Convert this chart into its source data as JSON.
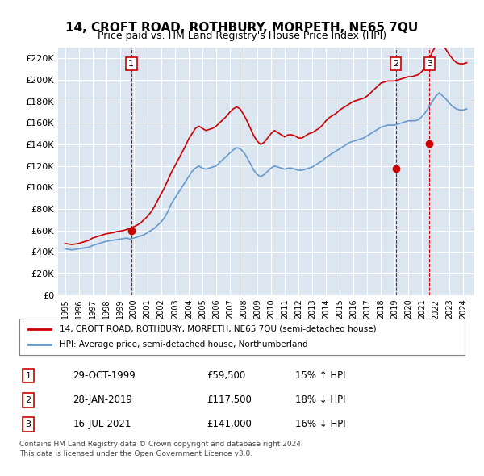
{
  "title": "14, CROFT ROAD, ROTHBURY, MORPETH, NE65 7QU",
  "subtitle": "Price paid vs. HM Land Registry's House Price Index (HPI)",
  "legend_line1": "14, CROFT ROAD, ROTHBURY, MORPETH, NE65 7QU (semi-detached house)",
  "legend_line2": "HPI: Average price, semi-detached house, Northumberland",
  "footnote1": "Contains HM Land Registry data © Crown copyright and database right 2024.",
  "footnote2": "This data is licensed under the Open Government Licence v3.0.",
  "price_color": "#cc0000",
  "hpi_color": "#6699cc",
  "background_color": "#dce6f1",
  "plot_bg_color": "#dce6f1",
  "sale_marker_color": "#cc0000",
  "annotation_box_color": "#cc0000",
  "sales": [
    {
      "label": "1",
      "date_x": 1999.83,
      "price": 59500
    },
    {
      "label": "2",
      "date_x": 2019.08,
      "price": 117500
    },
    {
      "label": "3",
      "date_x": 2021.54,
      "price": 141000
    }
  ],
  "sale_annotations": [
    {
      "num": "1",
      "date": "29-OCT-1999",
      "price": "£59,500",
      "pct": "15% ↑ HPI"
    },
    {
      "num": "2",
      "date": "28-JAN-2019",
      "price": "£117,500",
      "pct": "18% ↓ HPI"
    },
    {
      "num": "3",
      "date": "16-JUL-2021",
      "price": "£141,000",
      "pct": "16% ↓ HPI"
    }
  ],
  "ylim": [
    0,
    230000
  ],
  "yticks": [
    0,
    20000,
    40000,
    60000,
    80000,
    100000,
    120000,
    140000,
    160000,
    180000,
    200000,
    220000
  ],
  "xlim_start": 1994.5,
  "xlim_end": 2024.8,
  "hpi_data": {
    "years": [
      1995.0,
      1995.25,
      1995.5,
      1995.75,
      1996.0,
      1996.25,
      1996.5,
      1996.75,
      1997.0,
      1997.25,
      1997.5,
      1997.75,
      1998.0,
      1998.25,
      1998.5,
      1998.75,
      1999.0,
      1999.25,
      1999.5,
      1999.75,
      2000.0,
      2000.25,
      2000.5,
      2000.75,
      2001.0,
      2001.25,
      2001.5,
      2001.75,
      2002.0,
      2002.25,
      2002.5,
      2002.75,
      2003.0,
      2003.25,
      2003.5,
      2003.75,
      2004.0,
      2004.25,
      2004.5,
      2004.75,
      2005.0,
      2005.25,
      2005.5,
      2005.75,
      2006.0,
      2006.25,
      2006.5,
      2006.75,
      2007.0,
      2007.25,
      2007.5,
      2007.75,
      2008.0,
      2008.25,
      2008.5,
      2008.75,
      2009.0,
      2009.25,
      2009.5,
      2009.75,
      2010.0,
      2010.25,
      2010.5,
      2010.75,
      2011.0,
      2011.25,
      2011.5,
      2011.75,
      2012.0,
      2012.25,
      2012.5,
      2012.75,
      2013.0,
      2013.25,
      2013.5,
      2013.75,
      2014.0,
      2014.25,
      2014.5,
      2014.75,
      2015.0,
      2015.25,
      2015.5,
      2015.75,
      2016.0,
      2016.25,
      2016.5,
      2016.75,
      2017.0,
      2017.25,
      2017.5,
      2017.75,
      2018.0,
      2018.25,
      2018.5,
      2018.75,
      2019.0,
      2019.25,
      2019.5,
      2019.75,
      2020.0,
      2020.25,
      2020.5,
      2020.75,
      2021.0,
      2021.25,
      2021.5,
      2021.75,
      2022.0,
      2022.25,
      2022.5,
      2022.75,
      2023.0,
      2023.25,
      2023.5,
      2023.75,
      2024.0,
      2024.25
    ],
    "values": [
      43000,
      42500,
      42000,
      42500,
      43000,
      43500,
      44000,
      44500,
      46000,
      47000,
      48000,
      49000,
      50000,
      50500,
      51000,
      51500,
      52000,
      52500,
      53000,
      52000,
      53000,
      54000,
      55000,
      56000,
      58000,
      60000,
      62000,
      65000,
      68000,
      72000,
      78000,
      85000,
      90000,
      95000,
      100000,
      105000,
      110000,
      115000,
      118000,
      120000,
      118000,
      117000,
      118000,
      119000,
      120000,
      123000,
      126000,
      129000,
      132000,
      135000,
      137000,
      136000,
      133000,
      128000,
      122000,
      116000,
      112000,
      110000,
      112000,
      115000,
      118000,
      120000,
      119000,
      118000,
      117000,
      118000,
      118000,
      117000,
      116000,
      116000,
      117000,
      118000,
      119000,
      121000,
      123000,
      125000,
      128000,
      130000,
      132000,
      134000,
      136000,
      138000,
      140000,
      142000,
      143000,
      144000,
      145000,
      146000,
      148000,
      150000,
      152000,
      154000,
      156000,
      157000,
      158000,
      158000,
      158000,
      159000,
      160000,
      161000,
      162000,
      162000,
      162000,
      163000,
      166000,
      170000,
      175000,
      180000,
      185000,
      188000,
      185000,
      182000,
      178000,
      175000,
      173000,
      172000,
      172000,
      173000
    ]
  },
  "price_line_data": {
    "years": [
      1995.0,
      1995.25,
      1995.5,
      1995.75,
      1996.0,
      1996.25,
      1996.5,
      1996.75,
      1997.0,
      1997.25,
      1997.5,
      1997.75,
      1998.0,
      1998.25,
      1998.5,
      1998.75,
      1999.0,
      1999.25,
      1999.5,
      1999.75,
      2000.0,
      2000.25,
      2000.5,
      2000.75,
      2001.0,
      2001.25,
      2001.5,
      2001.75,
      2002.0,
      2002.25,
      2002.5,
      2002.75,
      2003.0,
      2003.25,
      2003.5,
      2003.75,
      2004.0,
      2004.25,
      2004.5,
      2004.75,
      2005.0,
      2005.25,
      2005.5,
      2005.75,
      2006.0,
      2006.25,
      2006.5,
      2006.75,
      2007.0,
      2007.25,
      2007.5,
      2007.75,
      2008.0,
      2008.25,
      2008.5,
      2008.75,
      2009.0,
      2009.25,
      2009.5,
      2009.75,
      2010.0,
      2010.25,
      2010.5,
      2010.75,
      2011.0,
      2011.25,
      2011.5,
      2011.75,
      2012.0,
      2012.25,
      2012.5,
      2012.75,
      2013.0,
      2013.25,
      2013.5,
      2013.75,
      2014.0,
      2014.25,
      2014.5,
      2014.75,
      2015.0,
      2015.25,
      2015.5,
      2015.75,
      2016.0,
      2016.25,
      2016.5,
      2016.75,
      2017.0,
      2017.25,
      2017.5,
      2017.75,
      2018.0,
      2018.25,
      2018.5,
      2018.75,
      2019.0,
      2019.25,
      2019.5,
      2019.75,
      2020.0,
      2020.25,
      2020.5,
      2020.75,
      2021.0,
      2021.25,
      2021.5,
      2021.75,
      2022.0,
      2022.25,
      2022.5,
      2022.75,
      2023.0,
      2023.25,
      2023.5,
      2023.75,
      2024.0,
      2024.25
    ],
    "values": [
      48000,
      47500,
      47000,
      47500,
      48000,
      49000,
      50000,
      51000,
      53000,
      54000,
      55000,
      56000,
      57000,
      57500,
      58000,
      59000,
      59500,
      60000,
      61000,
      62000,
      63500,
      65000,
      67000,
      70000,
      73000,
      77000,
      82000,
      88000,
      94000,
      100000,
      107000,
      114000,
      120000,
      126000,
      132000,
      138000,
      145000,
      150000,
      155000,
      157000,
      155000,
      153000,
      154000,
      155000,
      157000,
      160000,
      163000,
      166000,
      170000,
      173000,
      175000,
      173000,
      168000,
      162000,
      155000,
      148000,
      143000,
      140000,
      142000,
      146000,
      150000,
      153000,
      151000,
      149000,
      147000,
      149000,
      149000,
      148000,
      146000,
      146000,
      148000,
      150000,
      151000,
      153000,
      155000,
      158000,
      162000,
      165000,
      167000,
      169000,
      172000,
      174000,
      176000,
      178000,
      180000,
      181000,
      182000,
      183000,
      185000,
      188000,
      191000,
      194000,
      197000,
      198000,
      199000,
      199000,
      199000,
      200000,
      201000,
      202000,
      203000,
      203000,
      204000,
      205000,
      208000,
      213000,
      219000,
      226000,
      232000,
      236000,
      232000,
      228000,
      223000,
      219000,
      216000,
      215000,
      215000,
      216000
    ]
  }
}
